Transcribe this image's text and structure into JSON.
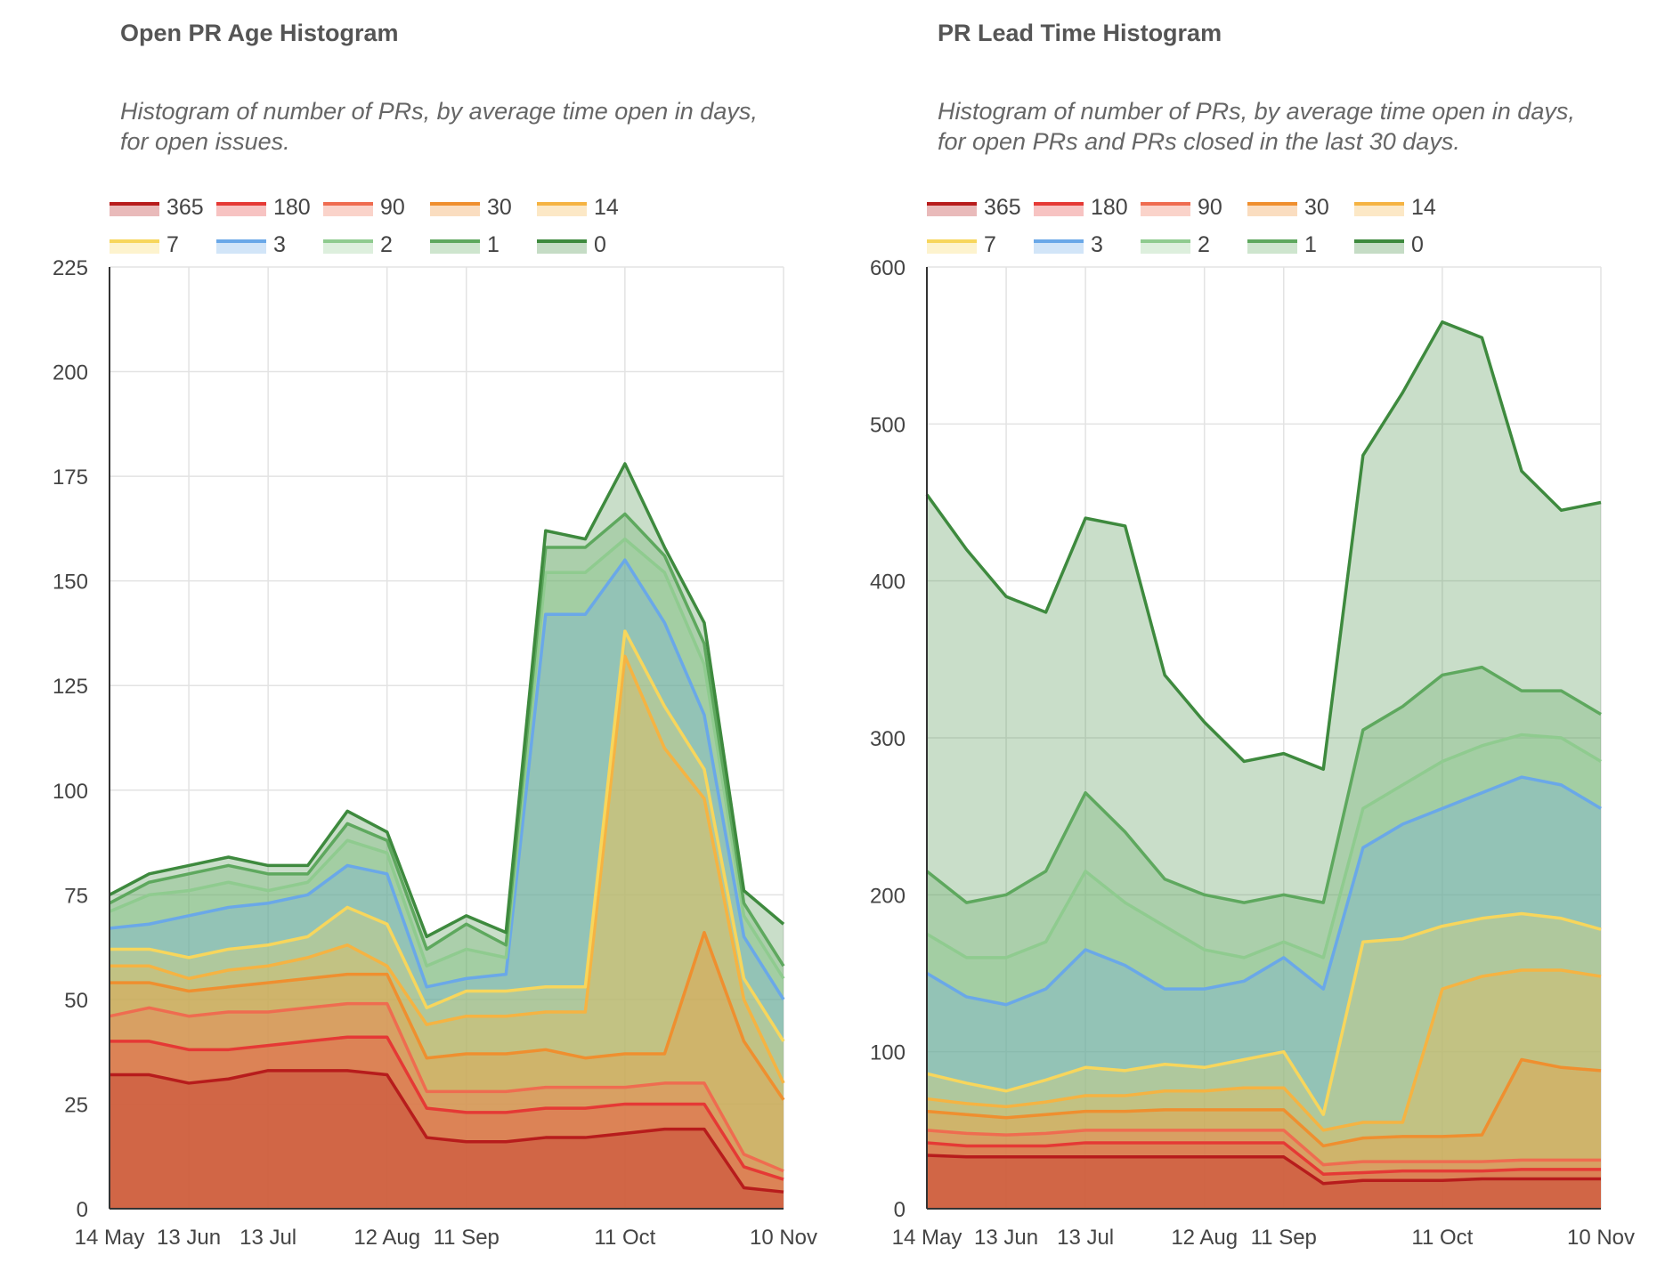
{
  "charts": [
    {
      "title": "Open PR Age Histogram",
      "subtitle": "Histogram of number of PRs, by average time open in days, for open issues."
    },
    {
      "title": "PR Lead Time Histogram",
      "subtitle": "Histogram of number of PRs, by average time open in days, for open PRs and PRs closed in the last 30 days."
    }
  ],
  "chart_data": [
    {
      "type": "area",
      "title": "Open PR Age Histogram",
      "subtitle": "Histogram of number of PRs, by average time open in days, for open issues.",
      "stacked": true,
      "xlabel": "",
      "ylabel": "",
      "x": [
        "14 May",
        "28 May",
        "13 Jun",
        "27 Jun",
        "13 Jul",
        "27 Jul",
        "5 Aug",
        "12 Aug",
        "20 Aug",
        "11 Sep",
        "18 Sep",
        "21 Sep",
        "28 Sep",
        "11 Oct",
        "17 Oct",
        "25 Oct",
        "3 Nov",
        "10 Nov"
      ],
      "x_tick_labels": [
        "14 May",
        "13 Jun",
        "13 Jul",
        "12 Aug",
        "11 Sep",
        "11 Oct",
        "10 Nov"
      ],
      "x_tick_index": [
        0,
        2,
        4,
        7,
        9,
        13,
        17
      ],
      "ylim": [
        0,
        225
      ],
      "y_ticks": [
        0,
        25,
        50,
        75,
        100,
        125,
        150,
        175,
        200,
        225
      ],
      "legend_position": "top-left",
      "series": [
        {
          "name": "365",
          "color": "#b71c1c",
          "values": [
            32,
            32,
            30,
            31,
            33,
            33,
            33,
            32,
            17,
            16,
            16,
            17,
            17,
            18,
            19,
            19,
            5,
            4
          ]
        },
        {
          "name": "180",
          "color": "#e53935",
          "values": [
            40,
            40,
            38,
            38,
            39,
            40,
            41,
            41,
            24,
            23,
            23,
            24,
            24,
            25,
            25,
            25,
            10,
            7
          ]
        },
        {
          "name": "90",
          "color": "#ef6c50",
          "values": [
            46,
            48,
            46,
            47,
            47,
            48,
            49,
            49,
            28,
            28,
            28,
            29,
            29,
            29,
            30,
            30,
            13,
            9
          ]
        },
        {
          "name": "30",
          "color": "#ef8f2f",
          "values": [
            54,
            54,
            52,
            53,
            54,
            55,
            56,
            56,
            36,
            37,
            37,
            38,
            36,
            37,
            37,
            66,
            40,
            26
          ]
        },
        {
          "name": "14",
          "color": "#f5b342",
          "values": [
            58,
            58,
            55,
            57,
            58,
            60,
            63,
            58,
            44,
            46,
            46,
            47,
            47,
            132,
            110,
            98,
            50,
            30
          ]
        },
        {
          "name": "7",
          "color": "#f7d65c",
          "values": [
            62,
            62,
            60,
            62,
            63,
            65,
            72,
            68,
            48,
            52,
            52,
            53,
            53,
            138,
            120,
            105,
            55,
            40
          ]
        },
        {
          "name": "3",
          "color": "#6aa8e8",
          "values": [
            67,
            68,
            70,
            72,
            73,
            75,
            82,
            80,
            53,
            55,
            56,
            142,
            142,
            155,
            140,
            118,
            65,
            50
          ]
        },
        {
          "name": "2",
          "color": "#8fcb8f",
          "values": [
            71,
            75,
            76,
            78,
            76,
            78,
            88,
            85,
            58,
            62,
            60,
            152,
            152,
            160,
            152,
            130,
            70,
            55
          ]
        },
        {
          "name": "1",
          "color": "#5ea85e",
          "values": [
            73,
            78,
            80,
            82,
            80,
            80,
            92,
            88,
            62,
            68,
            63,
            158,
            158,
            166,
            156,
            135,
            73,
            58
          ]
        },
        {
          "name": "0",
          "color": "#3e8a3e",
          "values": [
            75,
            80,
            82,
            84,
            82,
            82,
            95,
            90,
            65,
            70,
            66,
            162,
            160,
            178,
            158,
            140,
            76,
            68
          ]
        }
      ]
    },
    {
      "type": "area",
      "title": "PR Lead Time Histogram",
      "subtitle": "Histogram of number of PRs, by average time open in days, for open PRs and PRs closed in the last 30 days.",
      "stacked": true,
      "xlabel": "",
      "ylabel": "",
      "x": [
        "14 May",
        "28 May",
        "13 Jun",
        "27 Jun",
        "13 Jul",
        "27 Jul",
        "5 Aug",
        "12 Aug",
        "20 Aug",
        "11 Sep",
        "18 Sep",
        "21 Sep",
        "28 Sep",
        "11 Oct",
        "17 Oct",
        "25 Oct",
        "3 Nov",
        "10 Nov"
      ],
      "x_tick_labels": [
        "14 May",
        "13 Jun",
        "13 Jul",
        "12 Aug",
        "11 Sep",
        "11 Oct",
        "10 Nov"
      ],
      "x_tick_index": [
        0,
        2,
        4,
        7,
        9,
        13,
        17
      ],
      "ylim": [
        0,
        600
      ],
      "y_ticks": [
        0,
        100,
        200,
        300,
        400,
        500,
        600
      ],
      "legend_position": "top-left",
      "series": [
        {
          "name": "365",
          "color": "#b71c1c",
          "values": [
            34,
            33,
            33,
            33,
            33,
            33,
            33,
            33,
            33,
            33,
            16,
            18,
            18,
            18,
            19,
            19,
            19,
            19
          ]
        },
        {
          "name": "180",
          "color": "#e53935",
          "values": [
            42,
            40,
            40,
            40,
            42,
            42,
            42,
            42,
            42,
            42,
            22,
            23,
            24,
            24,
            24,
            25,
            25,
            25
          ]
        },
        {
          "name": "90",
          "color": "#ef6c50",
          "values": [
            50,
            48,
            47,
            48,
            50,
            50,
            50,
            50,
            50,
            50,
            28,
            30,
            30,
            30,
            30,
            31,
            31,
            31
          ]
        },
        {
          "name": "30",
          "color": "#ef8f2f",
          "values": [
            62,
            60,
            58,
            60,
            62,
            62,
            63,
            63,
            63,
            63,
            40,
            45,
            46,
            46,
            47,
            95,
            90,
            88
          ]
        },
        {
          "name": "14",
          "color": "#f5b342",
          "values": [
            70,
            67,
            65,
            68,
            72,
            72,
            75,
            75,
            77,
            77,
            50,
            55,
            55,
            140,
            148,
            152,
            152,
            148
          ]
        },
        {
          "name": "7",
          "color": "#f7d65c",
          "values": [
            86,
            80,
            75,
            82,
            90,
            88,
            92,
            90,
            95,
            100,
            60,
            170,
            172,
            180,
            185,
            188,
            185,
            178
          ]
        },
        {
          "name": "3",
          "color": "#6aa8e8",
          "values": [
            150,
            135,
            130,
            140,
            165,
            155,
            140,
            140,
            145,
            160,
            140,
            230,
            245,
            255,
            265,
            275,
            270,
            255
          ]
        },
        {
          "name": "2",
          "color": "#8fcb8f",
          "values": [
            175,
            160,
            160,
            170,
            215,
            195,
            180,
            165,
            160,
            170,
            160,
            255,
            270,
            285,
            295,
            302,
            300,
            285
          ]
        },
        {
          "name": "1",
          "color": "#5ea85e",
          "values": [
            215,
            195,
            200,
            215,
            265,
            240,
            210,
            200,
            195,
            200,
            195,
            305,
            320,
            340,
            345,
            330,
            330,
            315
          ]
        },
        {
          "name": "0",
          "color": "#3e8a3e",
          "values": [
            455,
            420,
            390,
            380,
            440,
            435,
            340,
            310,
            285,
            290,
            280,
            480,
            520,
            565,
            555,
            470,
            445,
            450
          ]
        }
      ]
    }
  ]
}
